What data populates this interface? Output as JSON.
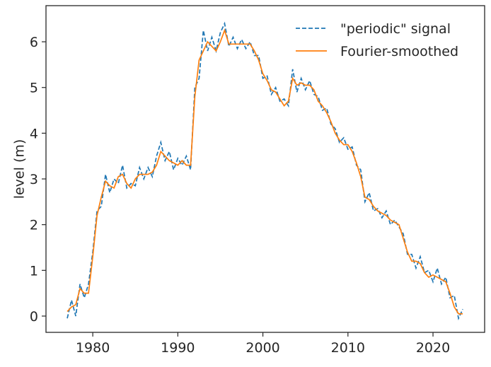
{
  "chart_data": {
    "type": "line",
    "ylabel": "level (m)",
    "xlim": [
      1974.5,
      2026.07
    ],
    "ylim": [
      -0.356,
      6.79
    ],
    "xticks": [
      1980,
      1990,
      2000,
      2010,
      2020
    ],
    "yticks": [
      0,
      1,
      2,
      3,
      4,
      5,
      6
    ],
    "legend": "upper right",
    "x": [
      1977,
      1977.5,
      1978,
      1978.5,
      1979,
      1979.5,
      1980,
      1980.5,
      1981,
      1981.5,
      1982,
      1982.5,
      1983,
      1983.5,
      1984,
      1984.5,
      1985,
      1985.5,
      1986,
      1986.5,
      1987,
      1987.5,
      1988,
      1988.5,
      1989,
      1989.5,
      1990,
      1990.5,
      1991,
      1991.5,
      1992,
      1992.5,
      1993,
      1993.5,
      1994,
      1994.5,
      1995,
      1995.5,
      1996,
      1996.5,
      1997,
      1997.5,
      1998,
      1998.5,
      1999,
      1999.5,
      2000,
      2000.5,
      2001,
      2001.5,
      2002,
      2002.5,
      2003,
      2003.5,
      2004,
      2004.5,
      2005,
      2005.5,
      2006,
      2006.5,
      2007,
      2007.5,
      2008,
      2008.5,
      2009,
      2009.5,
      2010,
      2010.5,
      2011,
      2011.5,
      2012,
      2012.5,
      2013,
      2013.5,
      2014,
      2014.5,
      2015,
      2015.5,
      2016,
      2016.5,
      2017,
      2017.5,
      2018,
      2018.5,
      2019,
      2019.5,
      2020,
      2020.5,
      2021,
      2021.5,
      2022,
      2022.5,
      2023,
      2023.5
    ],
    "series": [
      {
        "name": "\"periodic\" signal",
        "color": "#1f77b4",
        "linestyle": "dashed",
        "values": [
          -0.05,
          0.35,
          0.0,
          0.7,
          0.4,
          0.7,
          1.4,
          2.3,
          2.4,
          3.1,
          2.7,
          3.0,
          2.9,
          3.3,
          2.8,
          2.9,
          2.85,
          3.25,
          3.0,
          3.25,
          3.05,
          3.5,
          3.8,
          3.4,
          3.6,
          3.2,
          3.45,
          3.3,
          3.5,
          3.2,
          5.0,
          5.2,
          6.25,
          5.8,
          6.1,
          5.8,
          6.2,
          6.4,
          5.9,
          6.1,
          5.85,
          6.05,
          5.85,
          6.0,
          5.7,
          5.7,
          5.2,
          5.25,
          4.85,
          5.0,
          4.7,
          4.75,
          4.6,
          5.4,
          4.9,
          5.2,
          4.95,
          5.15,
          4.85,
          4.8,
          4.5,
          4.55,
          4.2,
          4.1,
          3.8,
          3.9,
          3.65,
          3.7,
          3.3,
          3.2,
          2.5,
          2.7,
          2.3,
          2.35,
          2.15,
          2.3,
          2.0,
          2.1,
          1.95,
          1.8,
          1.35,
          1.35,
          1.05,
          1.3,
          0.95,
          1.0,
          0.75,
          1.05,
          0.7,
          0.85,
          0.4,
          0.45,
          -0.05,
          0.15
        ]
      },
      {
        "name": "Fourier-smoothed",
        "color": "#ff7f0e",
        "linestyle": "solid",
        "values": [
          0.1,
          0.2,
          0.25,
          0.6,
          0.5,
          0.5,
          1.3,
          2.2,
          2.6,
          2.95,
          2.85,
          2.8,
          3.05,
          3.1,
          2.9,
          2.8,
          3.0,
          3.1,
          3.1,
          3.1,
          3.15,
          3.3,
          3.6,
          3.5,
          3.4,
          3.35,
          3.3,
          3.4,
          3.3,
          3.3,
          4.8,
          5.6,
          5.8,
          6.0,
          5.9,
          5.8,
          6.0,
          6.25,
          5.95,
          5.95,
          5.95,
          5.95,
          5.95,
          5.95,
          5.8,
          5.6,
          5.3,
          5.15,
          4.95,
          4.9,
          4.75,
          4.6,
          4.7,
          5.2,
          5.05,
          5.1,
          5.05,
          5.05,
          4.95,
          4.7,
          4.6,
          4.45,
          4.25,
          4.0,
          3.85,
          3.75,
          3.75,
          3.6,
          3.35,
          3.05,
          2.6,
          2.55,
          2.4,
          2.3,
          2.25,
          2.2,
          2.1,
          2.05,
          2.0,
          1.7,
          1.4,
          1.2,
          1.2,
          1.15,
          0.95,
          0.85,
          0.9,
          0.85,
          0.8,
          0.75,
          0.5,
          0.2,
          0.05,
          0.05
        ]
      }
    ]
  }
}
